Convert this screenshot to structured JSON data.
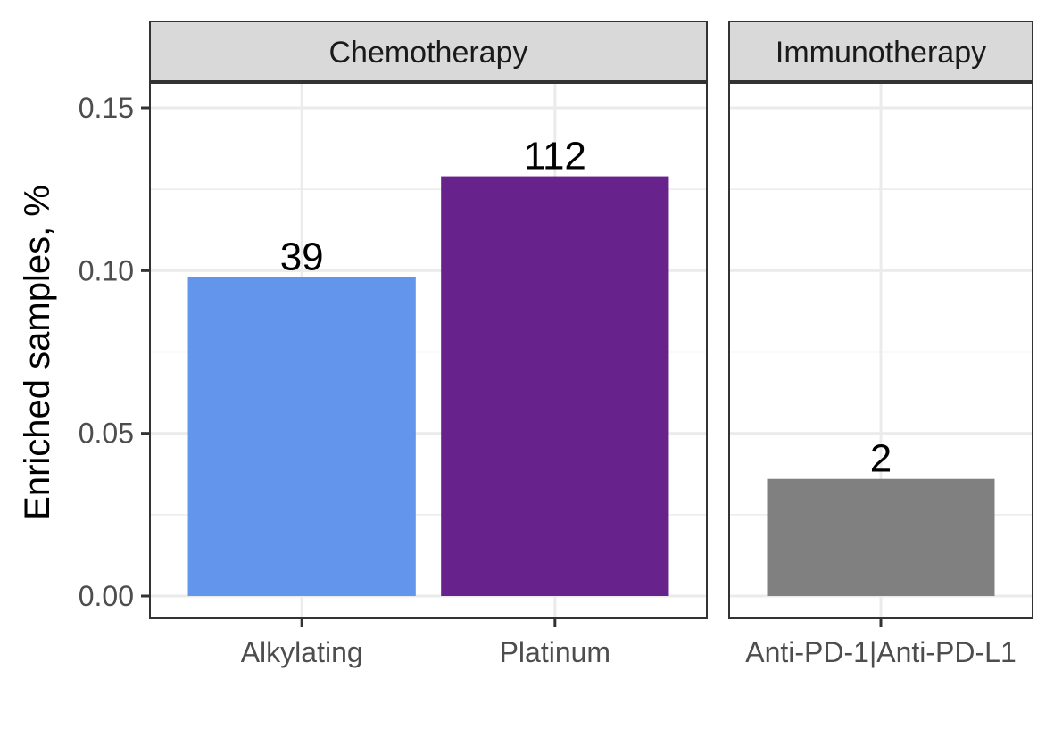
{
  "chart_data": {
    "type": "bar",
    "ylabel": "Enriched samples, %",
    "ylim": [
      0,
      0.158
    ],
    "yticks": [
      0.0,
      0.05,
      0.1,
      0.15
    ],
    "ytick_labels": [
      "0.00",
      "0.05",
      "0.10",
      "0.15"
    ],
    "grid": true,
    "facets": [
      {
        "name": "Chemotherapy",
        "categories": [
          "Alkylating",
          "Platinum"
        ],
        "values": [
          0.098,
          0.129
        ],
        "labels": [
          "39",
          "112"
        ],
        "colors": [
          "#6495ED",
          "#68228B"
        ]
      },
      {
        "name": "Immunotherapy",
        "categories": [
          "Anti-PD-1|Anti-PD-L1"
        ],
        "values": [
          0.036
        ],
        "labels": [
          "2"
        ],
        "colors": [
          "#808080"
        ]
      }
    ]
  }
}
